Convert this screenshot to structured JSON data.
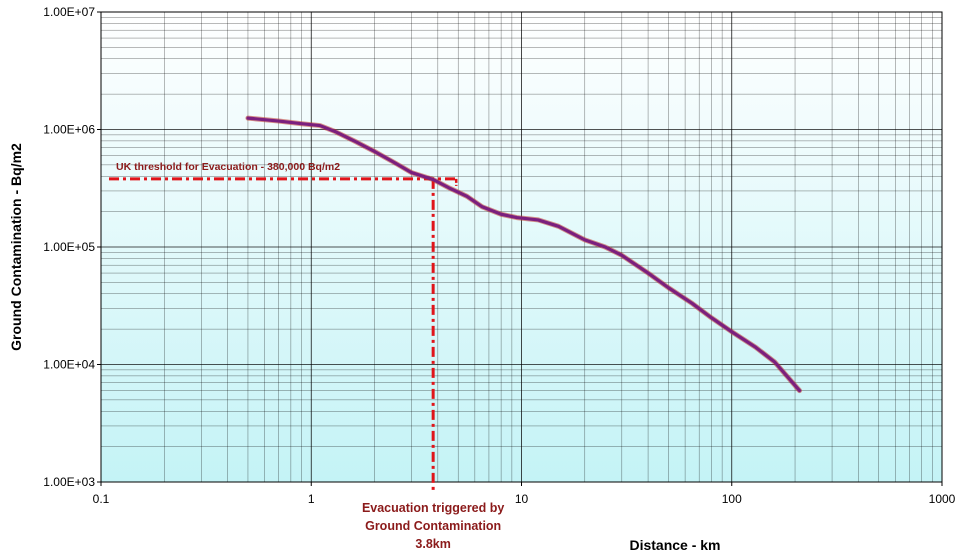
{
  "chart_data": {
    "type": "line",
    "xlabel": "Distance - km",
    "ylabel": "Ground Contamination - Bq/m2",
    "x_scale": "log",
    "y_scale": "log",
    "xlim": [
      0.1,
      1000
    ],
    "ylim": [
      1000,
      10000000
    ],
    "grid": true,
    "x_ticks": [
      "0.1",
      "1",
      "10",
      "100",
      "1000"
    ],
    "y_ticks": [
      "1.00E+03",
      "1.00E+04",
      "1.00E+05",
      "1.00E+06",
      "1.00E+07"
    ],
    "x_tick_values": [
      0.1,
      1,
      10,
      100,
      1000
    ],
    "y_tick_values": [
      1000,
      10000,
      100000,
      1000000,
      10000000
    ],
    "series": [
      {
        "color": "#7b1f7e",
        "points": [
          [
            0.5,
            1250000
          ],
          [
            0.7,
            1180000
          ],
          [
            0.9,
            1120000
          ],
          [
            1.1,
            1080000
          ],
          [
            1.3,
            960000
          ],
          [
            1.6,
            800000
          ],
          [
            2.0,
            650000
          ],
          [
            2.5,
            520000
          ],
          [
            3.0,
            430000
          ],
          [
            3.8,
            375000
          ],
          [
            4.5,
            320000
          ],
          [
            5.5,
            270000
          ],
          [
            6.5,
            220000
          ],
          [
            8.0,
            190000
          ],
          [
            9.5,
            178000
          ],
          [
            12.0,
            170000
          ],
          [
            15.0,
            150000
          ],
          [
            20.0,
            115000
          ],
          [
            25.0,
            100000
          ],
          [
            30.0,
            85000
          ],
          [
            40.0,
            60000
          ],
          [
            50.0,
            45000
          ],
          [
            65.0,
            33000
          ],
          [
            80.0,
            25000
          ],
          [
            100.0,
            19000
          ],
          [
            130.0,
            14000
          ],
          [
            160.0,
            10500
          ],
          [
            210.0,
            6000
          ]
        ]
      }
    ],
    "annotations": {
      "threshold_label": "UK threshold for Evacuation - 380,000 Bq/m2",
      "threshold_value": 380000,
      "threshold_x_range": [
        0.1,
        5.0
      ],
      "trigger_x": 3.8,
      "trigger_label_lines": [
        "Evacuation triggered by",
        "Ground Contamination",
        "3.8km"
      ],
      "line_color": "#e0141a",
      "text_color": "#8b1a1a"
    },
    "background_gradient": [
      "#ffffff",
      "#c4f3f6"
    ]
  }
}
